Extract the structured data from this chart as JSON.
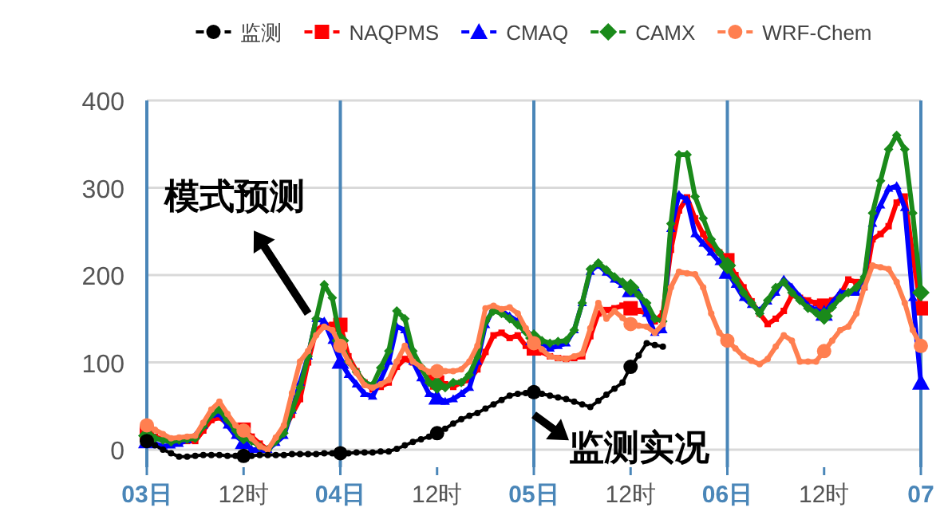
{
  "chart_data": {
    "type": "line",
    "ylim": [
      -20,
      400
    ],
    "yticks": [
      0,
      100,
      200,
      300,
      400
    ],
    "categories": [
      "03日",
      null,
      null,
      null,
      null,
      null,
      null,
      null,
      null,
      null,
      null,
      null,
      "12时",
      null,
      null,
      null,
      null,
      null,
      null,
      null,
      null,
      null,
      null,
      null,
      "04日",
      null,
      null,
      null,
      null,
      null,
      null,
      null,
      null,
      null,
      null,
      null,
      "12时",
      null,
      null,
      null,
      null,
      null,
      null,
      null,
      null,
      null,
      null,
      null,
      "05日",
      null,
      null,
      null,
      null,
      null,
      null,
      null,
      null,
      null,
      null,
      null,
      "12时",
      null,
      null,
      null,
      null,
      null,
      null,
      null,
      null,
      null,
      null,
      null,
      "06日",
      null,
      null,
      null,
      null,
      null,
      null,
      null,
      null,
      null,
      null,
      null,
      "12时",
      null,
      null,
      null,
      null,
      null,
      null,
      null,
      null,
      null,
      null,
      null,
      "07"
    ],
    "grid": "y",
    "legend": "top",
    "ref_lines": [
      {
        "axis": "x",
        "value": "04日",
        "color": "#4a86b8"
      },
      {
        "axis": "x",
        "value": "05日",
        "color": "#4a86b8"
      },
      {
        "axis": "x",
        "value": "06日",
        "color": "#4a86b8"
      }
    ],
    "annotations": [
      {
        "text": "模式预测",
        "x": "04日",
        "y": 156
      },
      {
        "text": "监测实况",
        "x": "05日",
        "y": 40
      }
    ],
    "series": [
      {
        "name": "监测",
        "color": "#000000",
        "marker": "circle",
        "values": [
          10,
          5,
          0,
          -4,
          -8,
          -8,
          -7,
          -6,
          -6,
          -6,
          -7,
          -7,
          -7,
          -7,
          -6,
          -6,
          -6,
          -6,
          -5,
          -5,
          -5,
          -5,
          -4,
          -4,
          -4,
          -4,
          -3,
          -3,
          -3,
          -2,
          -2,
          1,
          5,
          9,
          12,
          15,
          19,
          24,
          30,
          35,
          39,
          42,
          47,
          52,
          57,
          62,
          64,
          65,
          66,
          64,
          62,
          60,
          58,
          55,
          52,
          49,
          56,
          63,
          70,
          77,
          95,
          108,
          122,
          120,
          118,
          null,
          null,
          null,
          null,
          null,
          null,
          null,
          null,
          null,
          null,
          null,
          null,
          null,
          null,
          null,
          null,
          null,
          null,
          null,
          null,
          null,
          null,
          null,
          null,
          null,
          null,
          null,
          null,
          null,
          null,
          null,
          null
        ]
      },
      {
        "name": "NAQPMS",
        "color": "#ff0000",
        "marker": "square",
        "values": [
          19,
          15,
          12,
          9,
          9,
          10,
          10,
          22,
          34,
          37,
          30,
          22,
          23,
          15,
          7,
          0,
          10,
          22,
          40,
          58,
          100,
          137,
          143,
          143,
          143,
          107,
          90,
          77,
          69,
          72,
          77,
          95,
          104,
          100,
          92,
          83,
          77,
          75,
          72,
          77,
          80,
          92,
          112,
          131,
          134,
          128,
          131,
          119,
          116,
          112,
          107,
          105,
          104,
          105,
          107,
          130,
          156,
          160,
          162,
          165,
          162,
          159,
          156,
          147,
          156,
          229,
          274,
          289,
          265,
          247,
          232,
          226,
          217,
          200,
          186,
          170,
          156,
          144,
          150,
          159,
          177,
          174,
          171,
          168,
          165,
          171,
          177,
          195,
          192,
          186,
          241,
          247,
          256,
          283,
          290,
          223,
          162
        ]
      },
      {
        "name": "CMAQ",
        "color": "#0000ff",
        "marker": "triangle",
        "values": [
          10,
          7,
          4,
          5,
          7,
          11,
          16,
          28,
          40,
          41,
          28,
          16,
          9,
          0,
          0,
          0,
          8,
          16,
          45,
          77,
          107,
          150,
          147,
          125,
          101,
          86,
          75,
          64,
          61,
          80,
          101,
          141,
          137,
          101,
          82,
          64,
          60,
          55,
          58,
          64,
          71,
          101,
          143,
          162,
          159,
          153,
          147,
          137,
          128,
          122,
          116,
          119,
          122,
          137,
          168,
          204,
          212,
          203,
          195,
          189,
          183,
          180,
          156,
          134,
          137,
          253,
          292,
          286,
          247,
          236,
          226,
          215,
          204,
          189,
          174,
          166,
          159,
          170,
          180,
          195,
          186,
          175,
          165,
          160,
          156,
          168,
          180,
          180,
          180,
          198,
          259,
          280,
          299,
          302,
          277,
          174,
          77
        ]
      },
      {
        "name": "CAMX",
        "color": "#1a8a1a",
        "marker": "diamond",
        "values": [
          16,
          13,
          11,
          9,
          11,
          12,
          13,
          27,
          40,
          46,
          34,
          22,
          16,
          10,
          4,
          0,
          10,
          19,
          45,
          71,
          107,
          150,
          189,
          174,
          125,
          101,
          89,
          77,
          74,
          94,
          113,
          159,
          150,
          113,
          95,
          77,
          74,
          71,
          77,
          77,
          86,
          107,
          147,
          159,
          156,
          150,
          143,
          135,
          128,
          125,
          122,
          124,
          125,
          137,
          168,
          207,
          214,
          206,
          198,
          192,
          186,
          177,
          168,
          150,
          147,
          259,
          338,
          338,
          290,
          265,
          241,
          226,
          211,
          195,
          180,
          168,
          156,
          171,
          186,
          192,
          180,
          171,
          162,
          157,
          153,
          163,
          174,
          180,
          186,
          198,
          271,
          308,
          344,
          360,
          344,
          271,
          180
        ]
      },
      {
        "name": "WRF-Chem",
        "color": "#ff7f50",
        "marker": "circle",
        "values": [
          28,
          23,
          18,
          13,
          14,
          15,
          16,
          31,
          46,
          55,
          41,
          28,
          22,
          13,
          4,
          0,
          14,
          28,
          65,
          101,
          113,
          131,
          141,
          137,
          119,
          101,
          88,
          74,
          71,
          75,
          80,
          101,
          119,
          101,
          95,
          89,
          90,
          90,
          90,
          92,
          101,
          119,
          162,
          165,
          161,
          163,
          156,
          139,
          122,
          115,
          107,
          105,
          104,
          107,
          110,
          139,
          168,
          150,
          159,
          151,
          144,
          142,
          141,
          134,
          144,
          186,
          204,
          202,
          201,
          186,
          156,
          134,
          125,
          116,
          107,
          102,
          98,
          104,
          118,
          131,
          125,
          101,
          101,
          101,
          113,
          125,
          137,
          141,
          156,
          186,
          211,
          209,
          207,
          192,
          168,
          137,
          119
        ]
      }
    ]
  }
}
